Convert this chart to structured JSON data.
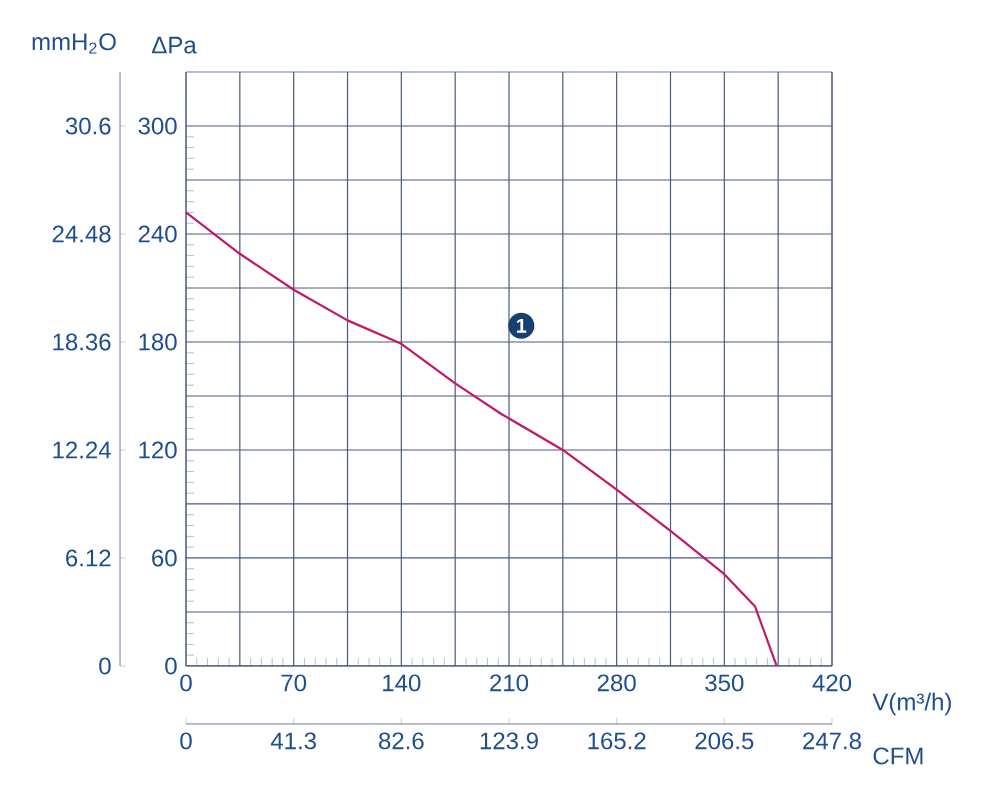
{
  "chart_data": {
    "type": "line",
    "xlabel": "V(m³/h)",
    "ylabel": "ΔPa",
    "y2label": "mmH$_{2}$O",
    "x2label": "CFM",
    "xlim": [
      0,
      420
    ],
    "xticks": [
      0,
      {
        "value": 35,
        "label": null
      },
      70,
      {
        "value": 105,
        "label": null
      },
      140,
      {
        "value": 175,
        "label": null
      },
      210,
      {
        "value": 245,
        "label": null
      },
      280,
      {
        "value": 315,
        "label": null
      },
      350,
      {
        "value": 385,
        "label": null
      },
      420
    ],
    "ylim": [
      0,
      330
    ],
    "yticks": [
      0,
      {
        "value": 30,
        "label": null
      },
      60,
      {
        "value": 90,
        "label": null
      },
      120,
      {
        "value": 150,
        "label": null
      },
      180,
      {
        "value": 210,
        "label": null
      },
      240,
      {
        "value": 270,
        "label": null
      },
      300
    ],
    "y2lim": [
      0,
      33.66
    ],
    "y2ticks": [
      0,
      6.12,
      12.24,
      18.36,
      24.48,
      30.6
    ],
    "x2lim": [
      0,
      247.8
    ],
    "x2ticks": [
      0,
      41.3,
      82.6,
      123.9,
      165.2,
      206.5,
      247.8
    ],
    "grid": true,
    "x": [
      0,
      35,
      70,
      105,
      140,
      175,
      205,
      245,
      280,
      315,
      350,
      370,
      384
    ],
    "series": [
      {
        "color": "#c2186b",
        "values": [
          252,
          229,
          209,
          192,
          179,
          157,
          140,
          120,
          98,
          75,
          51,
          33,
          0
        ]
      }
    ],
    "annotations": [
      {
        "text": "1",
        "x": 218,
        "y": 189
      }
    ]
  }
}
